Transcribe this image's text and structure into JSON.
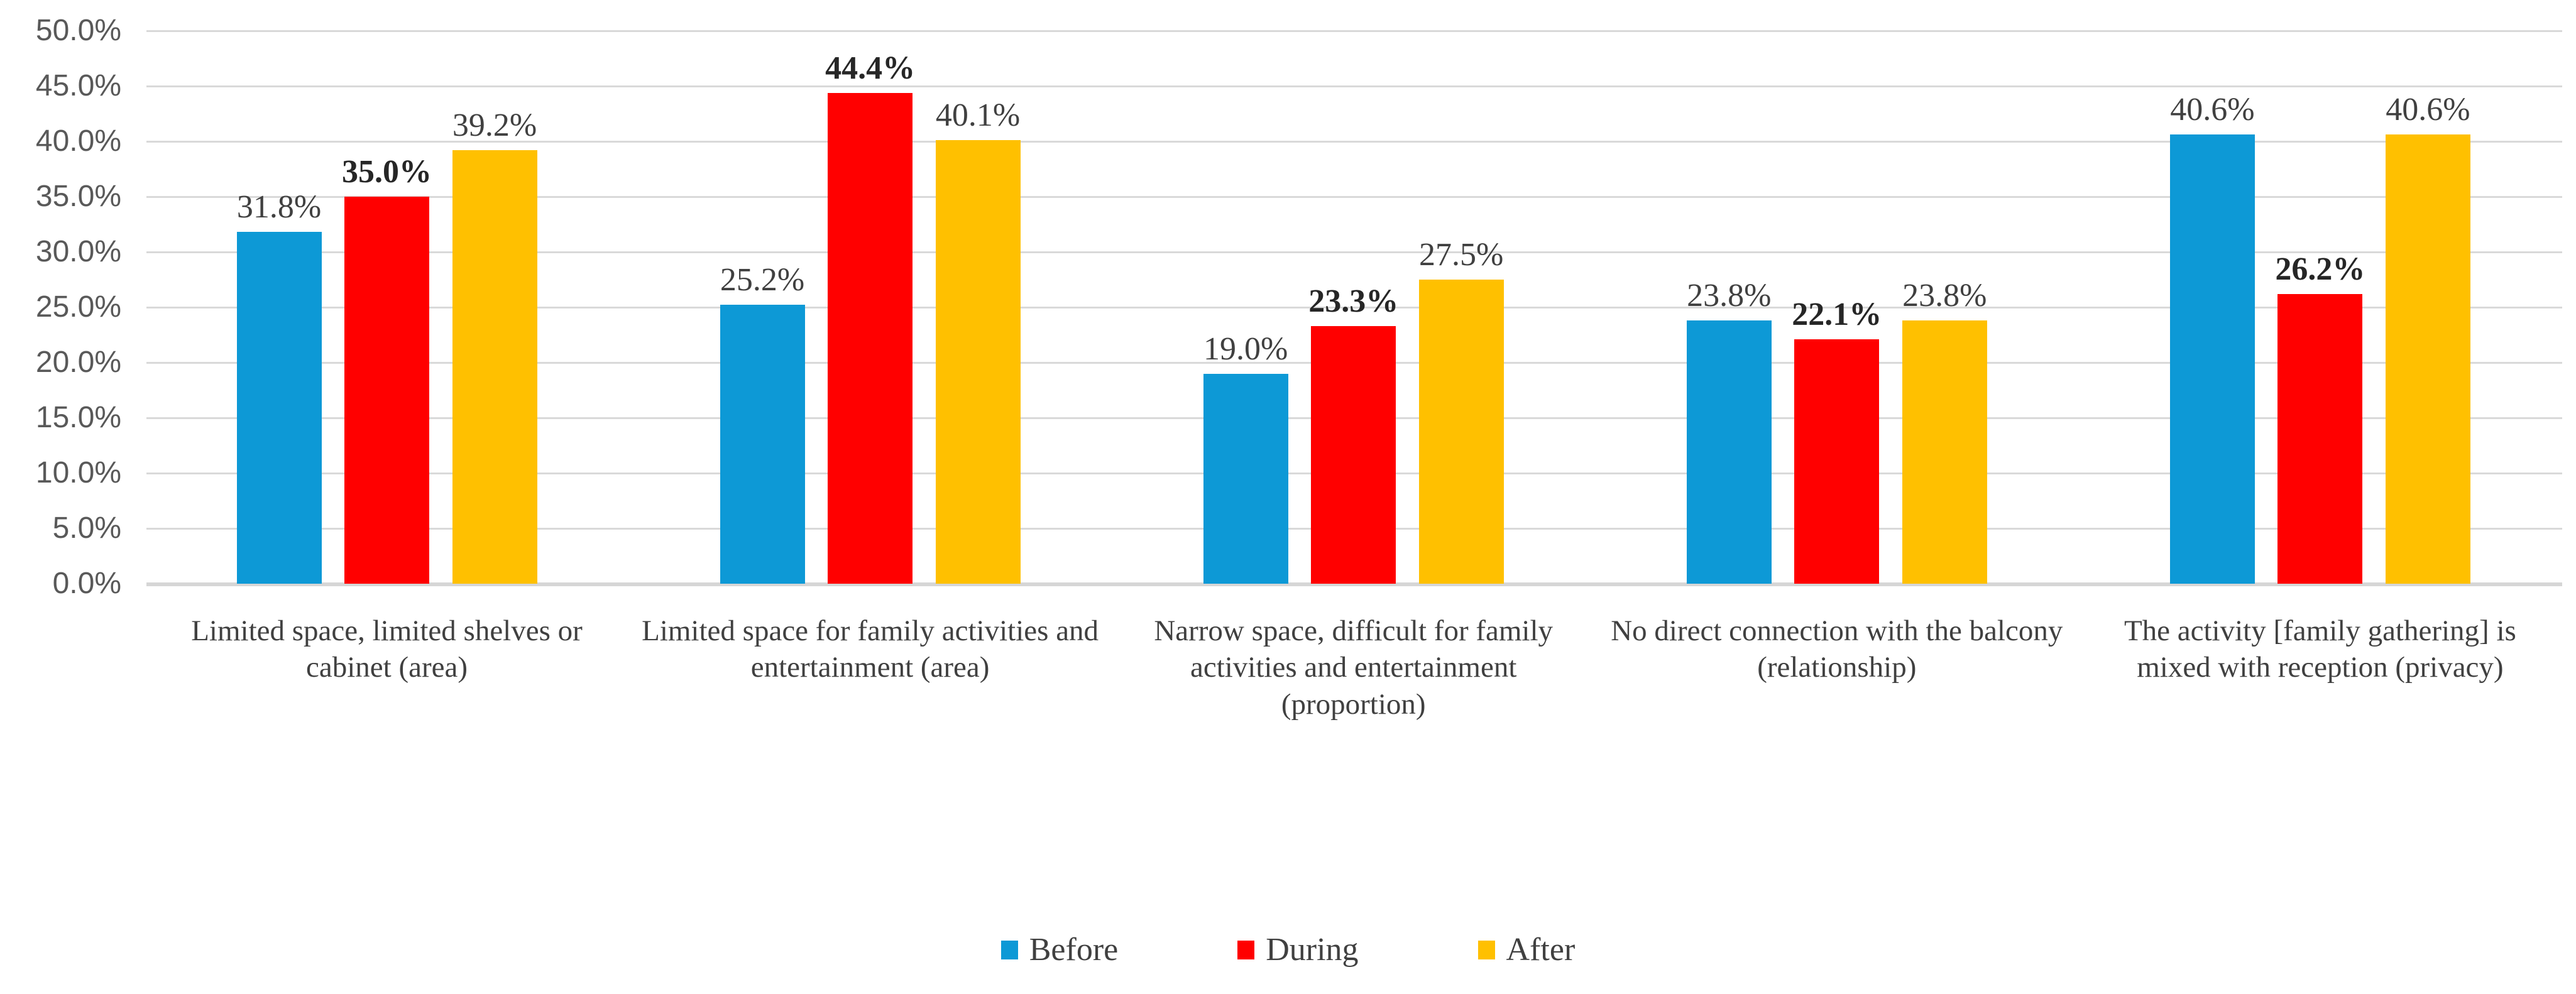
{
  "chart_data": {
    "type": "bar",
    "title": "",
    "categories": [
      "Limited space, limited shelves or cabinet (area)",
      "Limited space for family activities and entertainment (area)",
      "Narrow space, difficult for family activities and entertainment (proportion)",
      "No direct connection with the balcony (relationship)",
      "The activity [family gathering] is mixed with reception (privacy)"
    ],
    "series": [
      {
        "name": "Before",
        "color": "#0D99D6",
        "values": [
          31.8,
          25.2,
          19.0,
          23.8,
          40.6
        ],
        "labels": [
          "31.8%",
          "25.2%",
          "19.0%",
          "23.8%",
          "40.6%"
        ],
        "bold_labels": false
      },
      {
        "name": "During",
        "color": "#FF0000",
        "values": [
          35.0,
          44.4,
          23.3,
          22.1,
          26.2
        ],
        "labels": [
          "35.0%",
          "44.4%",
          "23.3%",
          "22.1%",
          "26.2%"
        ],
        "bold_labels": true
      },
      {
        "name": "After",
        "color": "#FFC000",
        "values": [
          39.2,
          40.1,
          27.5,
          23.8,
          40.6
        ],
        "labels": [
          "39.2%",
          "40.1%",
          "27.5%",
          "23.8%",
          "40.6%"
        ],
        "bold_labels": false
      }
    ],
    "y_axis": {
      "min": 0,
      "max": 50,
      "step": 5,
      "tick_labels": [
        "0.0%",
        "5.0%",
        "10.0%",
        "15.0%",
        "20.0%",
        "25.0%",
        "30.0%",
        "35.0%",
        "40.0%",
        "45.0%",
        "50.0%"
      ]
    },
    "grid": true,
    "legend": {
      "position": "bottom",
      "entries": [
        "Before",
        "During",
        "After"
      ]
    },
    "style_colors": {
      "background": "#FFFFFF",
      "gridline": "#D9D9D9",
      "axis_line": "#D6D6D6",
      "tick_label": "#595959",
      "data_label": "#404040",
      "data_label_bold": "#262626",
      "category_label": "#404040",
      "legend_label": "#404040"
    }
  }
}
